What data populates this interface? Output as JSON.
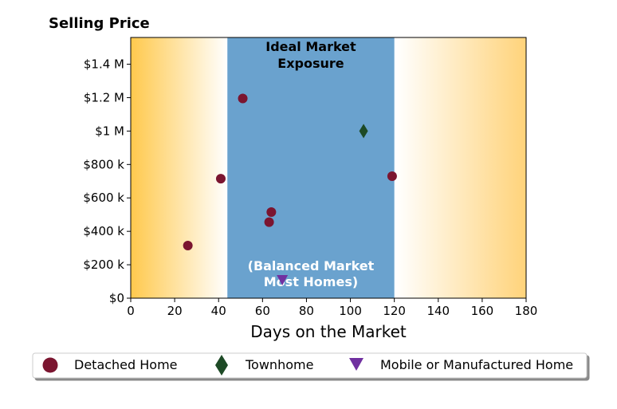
{
  "chart_data": {
    "type": "scatter",
    "ylabel": "Selling Price",
    "xlabel": "Days on the Market",
    "xlim": [
      0,
      180
    ],
    "ylim": [
      0,
      1560000
    ],
    "x_ticks": [
      0,
      20,
      40,
      60,
      80,
      100,
      120,
      140,
      160,
      180
    ],
    "x_tick_labels": [
      "0",
      "20",
      "40",
      "60",
      "80",
      "100",
      "120",
      "140",
      "160",
      "180"
    ],
    "y_ticks": [
      0,
      200000,
      400000,
      600000,
      800000,
      1000000,
      1200000,
      1400000
    ],
    "y_tick_labels": [
      "$0",
      "$200 k",
      "$400 k",
      "$600 k",
      "$800 k",
      "$1 M",
      "$1.2 M",
      "$1.4 M"
    ],
    "grid": false,
    "highlight_band": {
      "x_range": [
        44,
        120
      ],
      "color": "#6aa2ce",
      "top_label": [
        "Ideal Market",
        "Exposure"
      ],
      "bottom_label": [
        "(Balanced Market",
        "Most Homes)"
      ]
    },
    "background_gradient_edge_color": "#ffc94d",
    "legend_position": "bottom",
    "series": [
      {
        "name": "Detached Home",
        "marker": "circle",
        "color": "#7b1530",
        "points": [
          {
            "x": 26,
            "y": 315000
          },
          {
            "x": 41,
            "y": 715000
          },
          {
            "x": 51,
            "y": 1195000
          },
          {
            "x": 63,
            "y": 455000
          },
          {
            "x": 64,
            "y": 515000
          },
          {
            "x": 119,
            "y": 730000
          }
        ]
      },
      {
        "name": "Townhome",
        "marker": "diamond",
        "color": "#1d4a26",
        "points": [
          {
            "x": 106,
            "y": 1000000
          }
        ]
      },
      {
        "name": "Mobile or Manufactured Home",
        "marker": "triangle-down",
        "color": "#7030a0",
        "points": [
          {
            "x": 69,
            "y": 110000
          }
        ]
      }
    ]
  }
}
